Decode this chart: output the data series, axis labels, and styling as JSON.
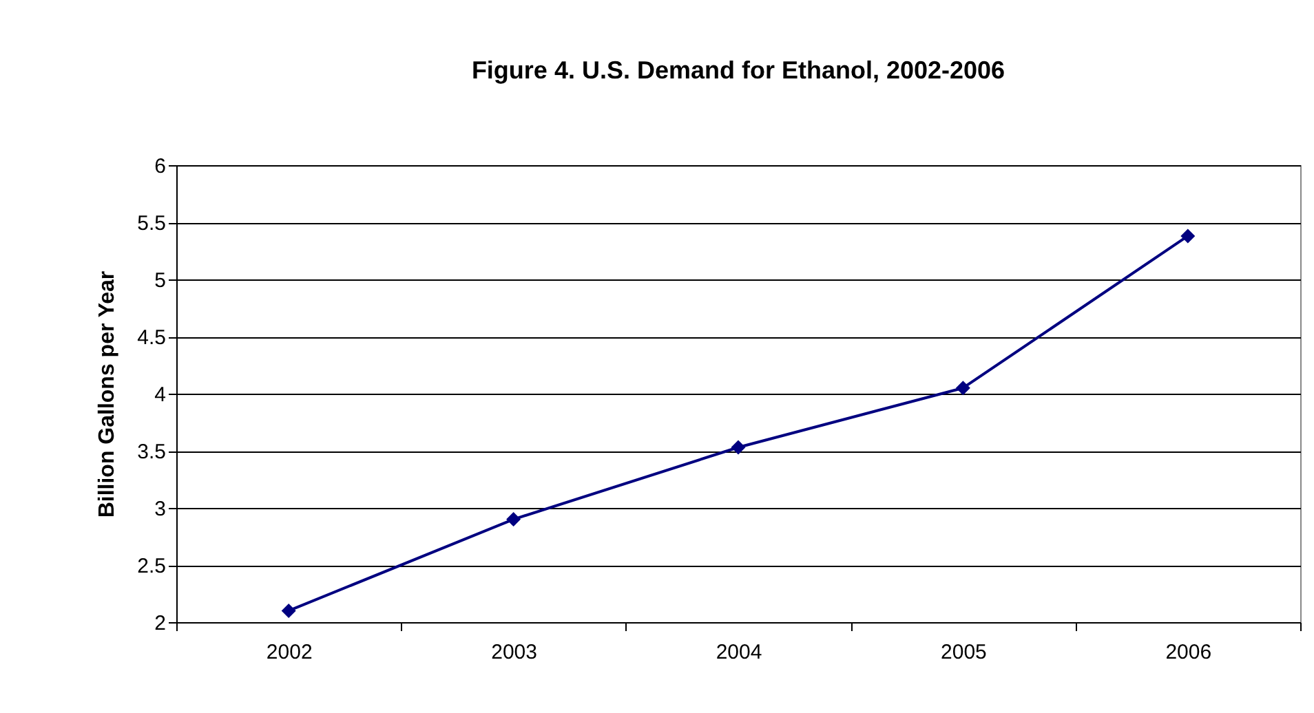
{
  "chart_data": {
    "type": "line",
    "title": "Figure 4. U.S. Demand for Ethanol, 2002-2006",
    "ylabel": "Billion Gallons per Year",
    "categories": [
      "2002",
      "2003",
      "2004",
      "2005",
      "2006"
    ],
    "series": [
      {
        "color": "#000080",
        "values": [
          2.1,
          2.9,
          3.53,
          4.05,
          5.38
        ]
      }
    ],
    "ylim": [
      2,
      6
    ],
    "yticks": [
      2,
      2.5,
      3,
      3.5,
      4,
      4.5,
      5,
      5.5,
      6
    ],
    "grid": "y",
    "marker": "diamond",
    "line_style": "solid"
  }
}
